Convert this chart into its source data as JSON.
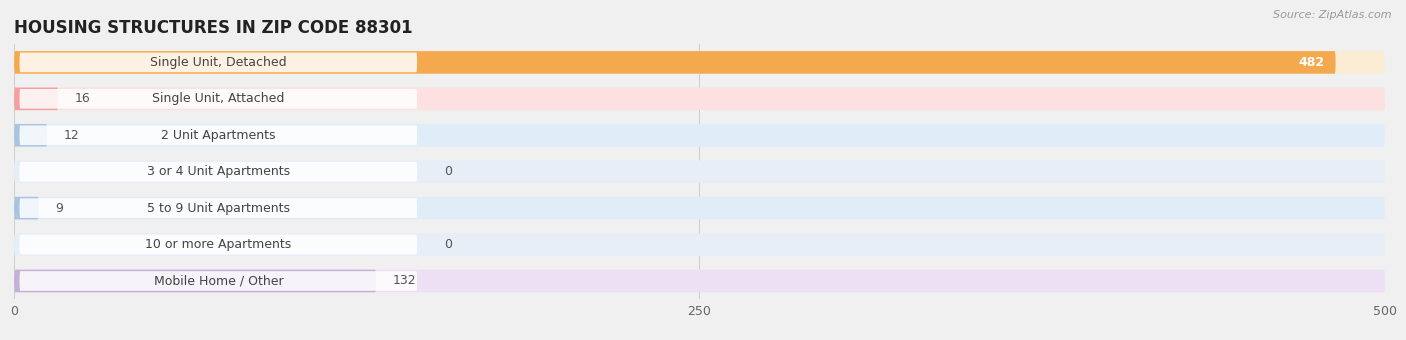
{
  "title": "HOUSING STRUCTURES IN ZIP CODE 88301",
  "source": "Source: ZipAtlas.com",
  "categories": [
    "Single Unit, Detached",
    "Single Unit, Attached",
    "2 Unit Apartments",
    "3 or 4 Unit Apartments",
    "5 to 9 Unit Apartments",
    "10 or more Apartments",
    "Mobile Home / Other"
  ],
  "values": [
    482,
    16,
    12,
    0,
    9,
    0,
    132
  ],
  "bar_colors": [
    "#f5a94e",
    "#f4a0a0",
    "#a8c4e0",
    "#a8c4e0",
    "#a8c4e0",
    "#a8c4e0",
    "#c4b0d8"
  ],
  "row_bg_colors": [
    "#fdecd4",
    "#fde0e0",
    "#e0ecf8",
    "#e8eef8",
    "#e0ecf8",
    "#e8eef8",
    "#ede0f4"
  ],
  "xlim": [
    0,
    500
  ],
  "xticks": [
    0,
    250,
    500
  ],
  "background_color": "#f0f0f0",
  "title_fontsize": 12,
  "label_fontsize": 9,
  "value_fontsize": 9
}
